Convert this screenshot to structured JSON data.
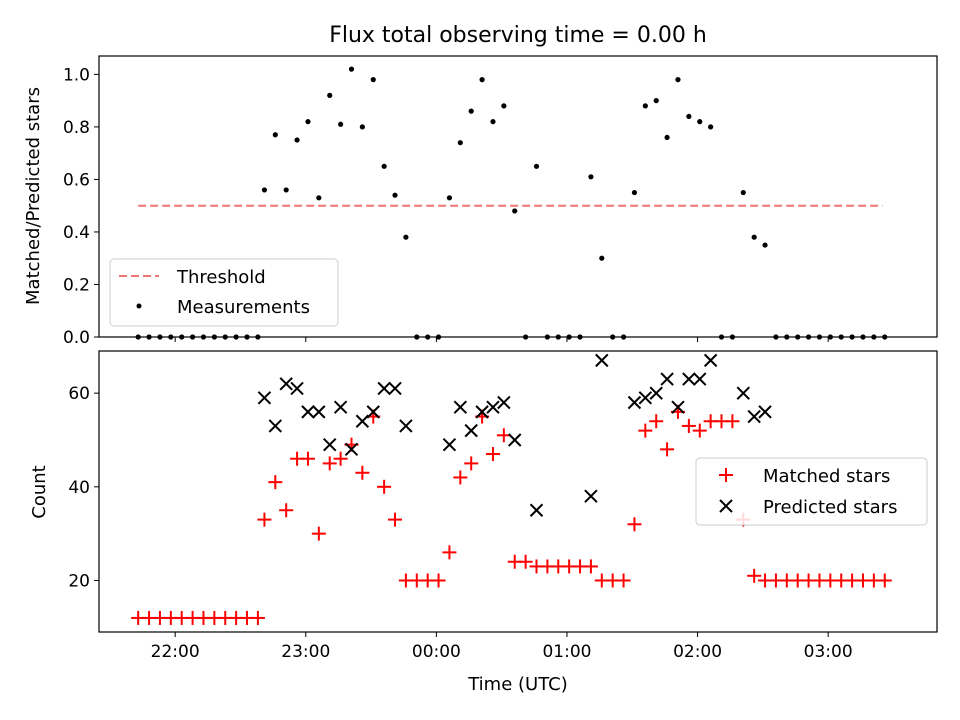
{
  "chart_data": [
    {
      "type": "scatter",
      "title": "Flux total observing time = 0.00 h",
      "ylabel": "Matched/Predicted stars",
      "xlabel": "",
      "xlim": [
        "21:25",
        "03:50"
      ],
      "ylim": [
        0,
        1.07
      ],
      "yticks": [
        "0.0",
        "0.2",
        "0.4",
        "0.6",
        "0.8",
        "1.0"
      ],
      "xticks": [
        "22:00",
        "23:00",
        "00:00",
        "01:00",
        "02:00",
        "03:00"
      ],
      "threshold": {
        "name": "Threshold",
        "value": 0.5,
        "x_range": [
          "21:43",
          "03:25"
        ]
      },
      "series": [
        {
          "name": "Measurements",
          "points": [
            [
              "21:43",
              0
            ],
            [
              "21:48",
              0
            ],
            [
              "21:53",
              0
            ],
            [
              "21:58",
              0
            ],
            [
              "22:03",
              0
            ],
            [
              "22:08",
              0
            ],
            [
              "22:13",
              0
            ],
            [
              "22:18",
              0
            ],
            [
              "22:23",
              0
            ],
            [
              "22:28",
              0
            ],
            [
              "22:33",
              0
            ],
            [
              "22:38",
              0
            ],
            [
              "22:41",
              0.56
            ],
            [
              "22:46",
              0.77
            ],
            [
              "22:51",
              0.56
            ],
            [
              "22:56",
              0.75
            ],
            [
              "23:01",
              0.82
            ],
            [
              "23:06",
              0.53
            ],
            [
              "23:11",
              0.92
            ],
            [
              "23:16",
              0.81
            ],
            [
              "23:21",
              1.02
            ],
            [
              "23:26",
              0.8
            ],
            [
              "23:31",
              0.98
            ],
            [
              "23:36",
              0.65
            ],
            [
              "23:41",
              0.54
            ],
            [
              "23:46",
              0.38
            ],
            [
              "23:51",
              0
            ],
            [
              "23:56",
              0
            ],
            [
              "00:01",
              0
            ],
            [
              "00:06",
              0.53
            ],
            [
              "00:11",
              0.74
            ],
            [
              "00:16",
              0.86
            ],
            [
              "00:21",
              0.98
            ],
            [
              "00:26",
              0.82
            ],
            [
              "00:31",
              0.88
            ],
            [
              "00:36",
              0.48
            ],
            [
              "00:41",
              0
            ],
            [
              "00:46",
              0.65
            ],
            [
              "00:51",
              0
            ],
            [
              "00:56",
              0
            ],
            [
              "01:01",
              0
            ],
            [
              "01:06",
              0
            ],
            [
              "01:11",
              0.61
            ],
            [
              "01:16",
              0.3
            ],
            [
              "01:21",
              0
            ],
            [
              "01:26",
              0
            ],
            [
              "01:31",
              0.55
            ],
            [
              "01:36",
              0.88
            ],
            [
              "01:41",
              0.9
            ],
            [
              "01:46",
              0.76
            ],
            [
              "01:51",
              0.98
            ],
            [
              "01:56",
              0.84
            ],
            [
              "02:01",
              0.82
            ],
            [
              "02:06",
              0.8
            ],
            [
              "02:11",
              0
            ],
            [
              "02:16",
              0
            ],
            [
              "02:21",
              0.55
            ],
            [
              "02:26",
              0.38
            ],
            [
              "02:31",
              0.35
            ],
            [
              "02:36",
              0
            ],
            [
              "02:41",
              0
            ],
            [
              "02:46",
              0
            ],
            [
              "02:51",
              0
            ],
            [
              "02:56",
              0
            ],
            [
              "03:01",
              0
            ],
            [
              "03:06",
              0
            ],
            [
              "03:11",
              0
            ],
            [
              "03:16",
              0
            ],
            [
              "03:21",
              0
            ],
            [
              "03:26",
              0
            ]
          ]
        }
      ],
      "legend": {
        "location": "lower-left",
        "entries": [
          "Threshold",
          "Measurements"
        ]
      },
      "colors": {
        "threshold": "#f07575",
        "measurements": "#000000"
      }
    },
    {
      "type": "scatter",
      "title": "",
      "ylabel": "Count",
      "xlabel": "Time (UTC)",
      "xlim": [
        "21:25",
        "03:50"
      ],
      "ylim": [
        9,
        69
      ],
      "yticks": [
        "20",
        "40",
        "60"
      ],
      "xticks": [
        "22:00",
        "23:00",
        "00:00",
        "01:00",
        "02:00",
        "03:00"
      ],
      "series": [
        {
          "name": "Matched stars",
          "marker": "+",
          "points": [
            [
              "21:43",
              12
            ],
            [
              "21:48",
              12
            ],
            [
              "21:53",
              12
            ],
            [
              "21:58",
              12
            ],
            [
              "22:03",
              12
            ],
            [
              "22:08",
              12
            ],
            [
              "22:13",
              12
            ],
            [
              "22:18",
              12
            ],
            [
              "22:23",
              12
            ],
            [
              "22:28",
              12
            ],
            [
              "22:33",
              12
            ],
            [
              "22:38",
              12
            ],
            [
              "22:41",
              33
            ],
            [
              "22:46",
              41
            ],
            [
              "22:51",
              35
            ],
            [
              "22:56",
              46
            ],
            [
              "23:01",
              46
            ],
            [
              "23:06",
              30
            ],
            [
              "23:11",
              45
            ],
            [
              "23:16",
              46
            ],
            [
              "23:21",
              49
            ],
            [
              "23:26",
              43
            ],
            [
              "23:31",
              55
            ],
            [
              "23:36",
              40
            ],
            [
              "23:41",
              33
            ],
            [
              "23:46",
              20
            ],
            [
              "23:51",
              20
            ],
            [
              "23:56",
              20
            ],
            [
              "00:01",
              20
            ],
            [
              "00:06",
              26
            ],
            [
              "00:11",
              42
            ],
            [
              "00:16",
              45
            ],
            [
              "00:21",
              55
            ],
            [
              "00:26",
              47
            ],
            [
              "00:31",
              51
            ],
            [
              "00:36",
              24
            ],
            [
              "00:41",
              24
            ],
            [
              "00:46",
              23
            ],
            [
              "00:51",
              23
            ],
            [
              "00:56",
              23
            ],
            [
              "01:01",
              23
            ],
            [
              "01:06",
              23
            ],
            [
              "01:11",
              23
            ],
            [
              "01:16",
              20
            ],
            [
              "01:21",
              20
            ],
            [
              "01:26",
              20
            ],
            [
              "01:31",
              32
            ],
            [
              "01:36",
              52
            ],
            [
              "01:41",
              54
            ],
            [
              "01:46",
              48
            ],
            [
              "01:51",
              56
            ],
            [
              "01:56",
              53
            ],
            [
              "02:01",
              52
            ],
            [
              "02:06",
              54
            ],
            [
              "02:11",
              54
            ],
            [
              "02:16",
              54
            ],
            [
              "02:21",
              33
            ],
            [
              "02:26",
              21
            ],
            [
              "02:31",
              20
            ],
            [
              "02:36",
              20
            ],
            [
              "02:41",
              20
            ],
            [
              "02:46",
              20
            ],
            [
              "02:51",
              20
            ],
            [
              "02:56",
              20
            ],
            [
              "03:01",
              20
            ],
            [
              "03:06",
              20
            ],
            [
              "03:11",
              20
            ],
            [
              "03:16",
              20
            ],
            [
              "03:21",
              20
            ],
            [
              "03:26",
              20
            ]
          ]
        },
        {
          "name": "Predicted stars",
          "marker": "x",
          "points": [
            [
              "22:41",
              59
            ],
            [
              "22:46",
              53
            ],
            [
              "22:51",
              62
            ],
            [
              "22:56",
              61
            ],
            [
              "23:01",
              56
            ],
            [
              "23:06",
              56
            ],
            [
              "23:11",
              49
            ],
            [
              "23:16",
              57
            ],
            [
              "23:21",
              48
            ],
            [
              "23:26",
              54
            ],
            [
              "23:31",
              56
            ],
            [
              "23:36",
              61
            ],
            [
              "23:41",
              61
            ],
            [
              "23:46",
              53
            ],
            [
              "00:06",
              49
            ],
            [
              "00:11",
              57
            ],
            [
              "00:16",
              52
            ],
            [
              "00:21",
              56
            ],
            [
              "00:26",
              57
            ],
            [
              "00:31",
              58
            ],
            [
              "00:36",
              50
            ],
            [
              "00:46",
              35
            ],
            [
              "01:11",
              38
            ],
            [
              "01:16",
              67
            ],
            [
              "01:31",
              58
            ],
            [
              "01:36",
              59
            ],
            [
              "01:41",
              60
            ],
            [
              "01:46",
              63
            ],
            [
              "01:51",
              57
            ],
            [
              "01:56",
              63
            ],
            [
              "02:01",
              63
            ],
            [
              "02:06",
              67
            ],
            [
              "02:21",
              60
            ],
            [
              "02:26",
              55
            ],
            [
              "02:31",
              56
            ]
          ]
        }
      ],
      "legend": {
        "location": "center-right",
        "entries": [
          "Matched stars",
          "Predicted stars"
        ]
      },
      "colors": {
        "matched": "#ff0000",
        "predicted": "#000000"
      }
    }
  ]
}
